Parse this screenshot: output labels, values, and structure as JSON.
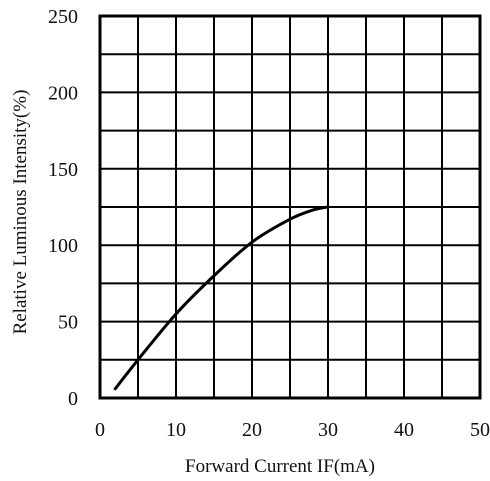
{
  "chart_data": {
    "type": "line",
    "title": "",
    "xlabel": "Forward Current IF(mA)",
    "ylabel": "Relative Luminous Intensity(%)",
    "xlim": [
      0,
      50
    ],
    "ylim": [
      0,
      250
    ],
    "x_ticks": [
      "0",
      "10",
      "20",
      "30",
      "40",
      "50"
    ],
    "y_ticks": [
      "0",
      "50",
      "100",
      "150",
      "200",
      "250"
    ],
    "grid": true,
    "series": [
      {
        "x": [
          2,
          5,
          10,
          15,
          20,
          25,
          28,
          30
        ],
        "y": [
          6,
          25,
          55,
          80,
          102,
          117,
          123,
          125
        ]
      }
    ]
  }
}
